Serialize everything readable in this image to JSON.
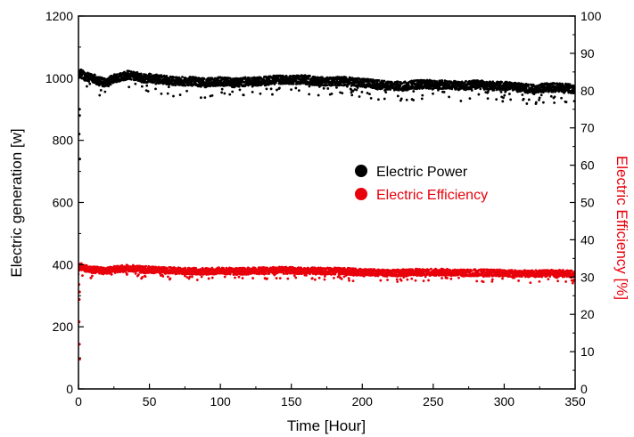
{
  "chart_data": {
    "type": "scatter",
    "title": "",
    "xlabel": "Time [Hour]",
    "ylabel_left": "Electric generation [w]",
    "ylabel_right": "Electric Efficiency [%]",
    "xlim": [
      0,
      350
    ],
    "ylim_left": [
      0,
      1200
    ],
    "ylim_right": [
      0,
      100
    ],
    "x_ticks": [
      "0",
      "50",
      "100",
      "150",
      "200",
      "250",
      "300",
      "350"
    ],
    "y_left_ticks": [
      "0",
      "200",
      "400",
      "600",
      "800",
      "1000",
      "1200"
    ],
    "y_right_ticks": [
      "0",
      "10",
      "20",
      "30",
      "40",
      "50",
      "60",
      "70",
      "80",
      "90",
      "100"
    ],
    "grid": false,
    "legend_position": "center-right",
    "series": [
      {
        "name": "Electric Power",
        "axis": "left",
        "color": "#000000",
        "x": [
          0,
          2,
          5,
          10,
          15,
          20,
          25,
          30,
          35,
          40,
          45,
          50,
          60,
          70,
          80,
          90,
          100,
          110,
          120,
          130,
          140,
          150,
          160,
          170,
          180,
          190,
          200,
          210,
          220,
          230,
          240,
          250,
          260,
          270,
          280,
          290,
          300,
          310,
          320,
          330,
          340,
          350
        ],
        "values": [
          1010,
          1015,
          1005,
          1000,
          990,
          985,
          1000,
          1005,
          1010,
          1008,
          1000,
          1000,
          995,
          990,
          990,
          985,
          990,
          985,
          990,
          990,
          995,
          995,
          995,
          990,
          990,
          990,
          985,
          980,
          975,
          975,
          980,
          980,
          980,
          975,
          980,
          975,
          975,
          970,
          965,
          970,
          970,
          965
        ]
      },
      {
        "name": "Electric Efficiency",
        "axis": "right",
        "color": "#e8000b",
        "x": [
          0,
          2,
          5,
          10,
          15,
          20,
          25,
          30,
          35,
          40,
          45,
          50,
          60,
          70,
          80,
          90,
          100,
          110,
          120,
          130,
          140,
          150,
          160,
          170,
          180,
          190,
          200,
          210,
          220,
          230,
          240,
          250,
          260,
          270,
          280,
          290,
          300,
          310,
          320,
          330,
          340,
          350
        ],
        "values": [
          32.5,
          32.8,
          32.3,
          32.0,
          31.8,
          31.6,
          32.0,
          32.2,
          32.4,
          32.3,
          32.0,
          32.0,
          31.8,
          31.7,
          31.6,
          31.5,
          31.7,
          31.5,
          31.6,
          31.7,
          31.8,
          31.8,
          31.7,
          31.6,
          31.6,
          31.5,
          31.3,
          31.2,
          31.0,
          31.2,
          31.3,
          31.3,
          31.3,
          31.1,
          31.2,
          31.1,
          31.1,
          31.0,
          30.9,
          31.0,
          31.0,
          30.8
        ]
      }
    ]
  }
}
